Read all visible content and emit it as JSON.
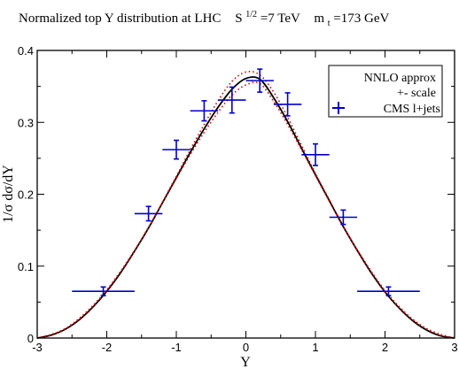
{
  "title": {
    "text": "Normalized top Y distribution at LHC",
    "energy_label": "S",
    "energy_exp": "1/2",
    "energy_value": "=7 TeV",
    "mass_label": "m",
    "mass_sub": "t",
    "mass_value": "=173 GeV"
  },
  "chart_data": {
    "type": "line",
    "xlabel": "Y",
    "ylabel": "1/σ dσ/dY",
    "xlim": [
      -3,
      3
    ],
    "ylim": [
      0,
      0.4
    ],
    "x_ticks": [
      -3,
      -2,
      -1,
      0,
      1,
      2,
      3
    ],
    "x_tick_labels": [
      "-3",
      "-2",
      "-1",
      "0",
      "1",
      "2",
      "3"
    ],
    "y_ticks": [
      0,
      0.1,
      0.2,
      0.3,
      0.4
    ],
    "y_tick_labels": [
      "0",
      "0.1",
      "0.2",
      "0.3",
      "0.4"
    ],
    "legend_placement": "top-right",
    "legend": {
      "line1": "NNLO  approx",
      "line2": "+- scale",
      "cms_label": "CMS  l+jets"
    },
    "series": [
      {
        "name": "NNLO approx",
        "style": "solid",
        "color": "#000000",
        "x": [
          -3.0,
          -2.8,
          -2.6,
          -2.4,
          -2.2,
          -2.0,
          -1.8,
          -1.6,
          -1.4,
          -1.2,
          -1.0,
          -0.8,
          -0.6,
          -0.4,
          -0.2,
          0.0,
          0.2,
          0.4,
          0.6,
          0.8,
          1.0,
          1.2,
          1.4,
          1.6,
          1.8,
          2.0,
          2.2,
          2.4,
          2.6,
          2.8,
          3.0
        ],
        "y": [
          0.0,
          0.004,
          0.012,
          0.025,
          0.043,
          0.065,
          0.091,
          0.121,
          0.153,
          0.188,
          0.223,
          0.258,
          0.291,
          0.321,
          0.346,
          0.361,
          0.36,
          0.334,
          0.301,
          0.264,
          0.227,
          0.191,
          0.155,
          0.122,
          0.091,
          0.064,
          0.042,
          0.024,
          0.011,
          0.003,
          0.0
        ]
      },
      {
        "name": "scale upper",
        "style": "dotted",
        "color": "#cc0000",
        "x": [
          -3.0,
          -2.8,
          -2.6,
          -2.4,
          -2.2,
          -2.0,
          -1.8,
          -1.6,
          -1.4,
          -1.2,
          -1.0,
          -0.8,
          -0.6,
          -0.4,
          -0.2,
          0.0,
          0.2,
          0.4,
          0.6,
          0.8,
          1.0,
          1.2,
          1.4,
          1.6,
          1.8,
          2.0,
          2.2,
          2.4,
          2.6,
          2.8,
          3.0
        ],
        "y": [
          0.0,
          0.004,
          0.012,
          0.026,
          0.044,
          0.066,
          0.092,
          0.121,
          0.153,
          0.189,
          0.225,
          0.262,
          0.297,
          0.33,
          0.357,
          0.37,
          0.366,
          0.342,
          0.307,
          0.268,
          0.229,
          0.192,
          0.156,
          0.122,
          0.092,
          0.065,
          0.043,
          0.025,
          0.012,
          0.004,
          0.0
        ]
      },
      {
        "name": "scale lower",
        "style": "dotted",
        "color": "#cc0000",
        "x": [
          -3.0,
          -2.8,
          -2.6,
          -2.4,
          -2.2,
          -2.0,
          -1.8,
          -1.6,
          -1.4,
          -1.2,
          -1.0,
          -0.8,
          -0.6,
          -0.4,
          -0.2,
          0.0,
          0.2,
          0.4,
          0.6,
          0.8,
          1.0,
          1.2,
          1.4,
          1.6,
          1.8,
          2.0,
          2.2,
          2.4,
          2.6,
          2.8,
          3.0
        ],
        "y": [
          0.0,
          0.005,
          0.013,
          0.027,
          0.045,
          0.067,
          0.093,
          0.122,
          0.154,
          0.188,
          0.222,
          0.255,
          0.286,
          0.314,
          0.338,
          0.352,
          0.354,
          0.329,
          0.297,
          0.262,
          0.226,
          0.19,
          0.155,
          0.123,
          0.093,
          0.066,
          0.044,
          0.026,
          0.013,
          0.005,
          0.0
        ]
      }
    ],
    "points": {
      "name": "CMS l+jets",
      "color": "#0000cc",
      "data": [
        {
          "x": -2.05,
          "y": 0.065,
          "xerr": 0.45,
          "yerr": 0.006
        },
        {
          "x": -1.4,
          "y": 0.173,
          "xerr": 0.2,
          "yerr": 0.01
        },
        {
          "x": -1.0,
          "y": 0.262,
          "xerr": 0.2,
          "yerr": 0.013
        },
        {
          "x": -0.6,
          "y": 0.316,
          "xerr": 0.2,
          "yerr": 0.014
        },
        {
          "x": -0.2,
          "y": 0.331,
          "xerr": 0.2,
          "yerr": 0.018
        },
        {
          "x": 0.2,
          "y": 0.358,
          "xerr": 0.2,
          "yerr": 0.016
        },
        {
          "x": 0.6,
          "y": 0.325,
          "xerr": 0.2,
          "yerr": 0.016
        },
        {
          "x": 1.0,
          "y": 0.255,
          "xerr": 0.2,
          "yerr": 0.015
        },
        {
          "x": 1.4,
          "y": 0.168,
          "xerr": 0.2,
          "yerr": 0.01
        },
        {
          "x": 2.05,
          "y": 0.065,
          "xerr": 0.45,
          "yerr": 0.006
        }
      ]
    }
  }
}
